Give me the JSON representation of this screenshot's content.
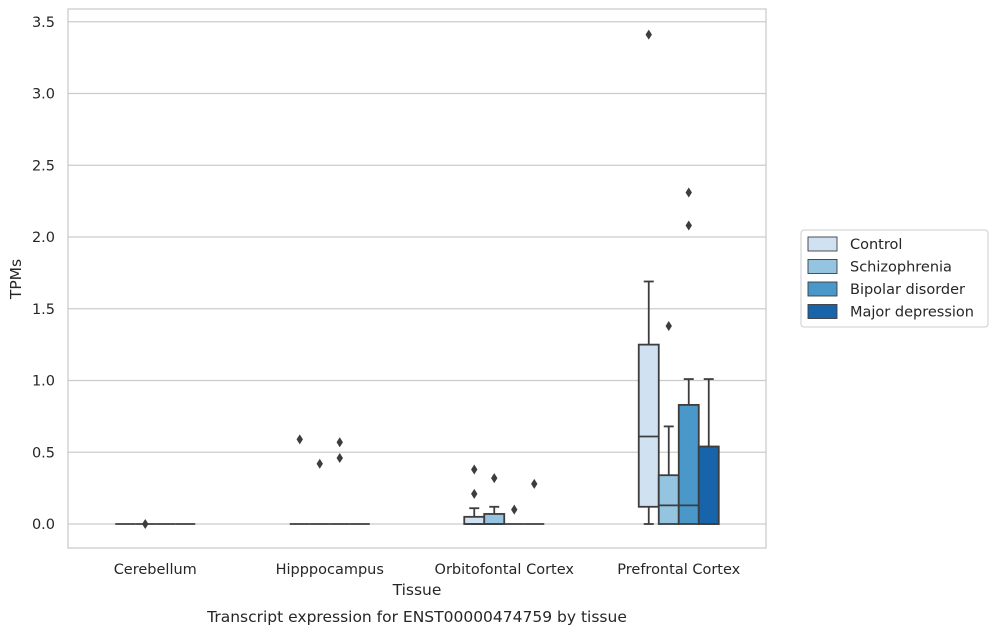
{
  "chart_data": {
    "type": "box",
    "xlabel": "Tissue",
    "ylabel": "TPMs",
    "caption": "Transcript expression for ENST00000474759 by tissue",
    "ylim": [
      -0.17,
      3.58
    ],
    "yticks": [
      0.0,
      0.5,
      1.0,
      1.5,
      2.0,
      2.5,
      3.0,
      3.5
    ],
    "ytick_labels": [
      "0.0",
      "0.5",
      "1.0",
      "1.5",
      "2.0",
      "2.5",
      "3.0",
      "3.5"
    ],
    "categories": [
      "Cerebellum",
      "Hipppocampus",
      "Orbitofontal Cortex",
      "Prefrontal Cortex"
    ],
    "grid": "horizontal",
    "legend_position": "right",
    "series": [
      {
        "name": "Control",
        "color": "#d0e1f2",
        "boxes": [
          {
            "whisker_low": 0.0,
            "q1": 0.0,
            "median": 0.0,
            "q3": 0.0,
            "whisker_high": 0.0,
            "outliers": []
          },
          {
            "whisker_low": 0.0,
            "q1": 0.0,
            "median": 0.0,
            "q3": 0.0,
            "whisker_high": 0.0,
            "outliers": [
              0.59
            ]
          },
          {
            "whisker_low": 0.0,
            "q1": 0.0,
            "median": 0.0,
            "q3": 0.05,
            "whisker_high": 0.11,
            "outliers": [
              0.21,
              0.38
            ]
          },
          {
            "whisker_low": 0.0,
            "q1": 0.12,
            "median": 0.61,
            "q3": 1.25,
            "whisker_high": 1.69,
            "outliers": [
              3.41
            ]
          }
        ]
      },
      {
        "name": "Schizophrenia",
        "color": "#94c4df",
        "boxes": [
          {
            "whisker_low": 0.0,
            "q1": 0.0,
            "median": 0.0,
            "q3": 0.0,
            "whisker_high": 0.0,
            "outliers": [
              0.0
            ]
          },
          {
            "whisker_low": 0.0,
            "q1": 0.0,
            "median": 0.0,
            "q3": 0.0,
            "whisker_high": 0.0,
            "outliers": [
              0.42
            ]
          },
          {
            "whisker_low": 0.0,
            "q1": 0.0,
            "median": 0.0,
            "q3": 0.07,
            "whisker_high": 0.12,
            "outliers": [
              0.32
            ]
          },
          {
            "whisker_low": 0.0,
            "q1": 0.0,
            "median": 0.13,
            "q3": 0.34,
            "whisker_high": 0.68,
            "outliers": [
              1.38
            ]
          }
        ]
      },
      {
        "name": "Bipolar disorder",
        "color": "#4a98c9",
        "boxes": [
          {
            "whisker_low": 0.0,
            "q1": 0.0,
            "median": 0.0,
            "q3": 0.0,
            "whisker_high": 0.0,
            "outliers": []
          },
          {
            "whisker_low": 0.0,
            "q1": 0.0,
            "median": 0.0,
            "q3": 0.0,
            "whisker_high": 0.0,
            "outliers": [
              0.46,
              0.57
            ]
          },
          {
            "whisker_low": 0.0,
            "q1": 0.0,
            "median": 0.0,
            "q3": 0.0,
            "whisker_high": 0.0,
            "outliers": [
              0.1
            ]
          },
          {
            "whisker_low": 0.0,
            "q1": 0.0,
            "median": 0.13,
            "q3": 0.83,
            "whisker_high": 1.01,
            "outliers": [
              2.08,
              2.31
            ]
          }
        ]
      },
      {
        "name": "Major depression",
        "color": "#1764ab",
        "boxes": [
          {
            "whisker_low": 0.0,
            "q1": 0.0,
            "median": 0.0,
            "q3": 0.0,
            "whisker_high": 0.0,
            "outliers": []
          },
          {
            "whisker_low": 0.0,
            "q1": 0.0,
            "median": 0.0,
            "q3": 0.0,
            "whisker_high": 0.0,
            "outliers": []
          },
          {
            "whisker_low": 0.0,
            "q1": 0.0,
            "median": 0.0,
            "q3": 0.0,
            "whisker_high": 0.0,
            "outliers": [
              0.28
            ]
          },
          {
            "whisker_low": 0.0,
            "q1": 0.0,
            "median": 0.0,
            "q3": 0.54,
            "whisker_high": 1.01,
            "outliers": []
          }
        ]
      }
    ]
  },
  "colors": {
    "grid": "#cccccc",
    "frame": "#cccccc",
    "box_edge": "#3d3d3d",
    "text": "#262626"
  }
}
